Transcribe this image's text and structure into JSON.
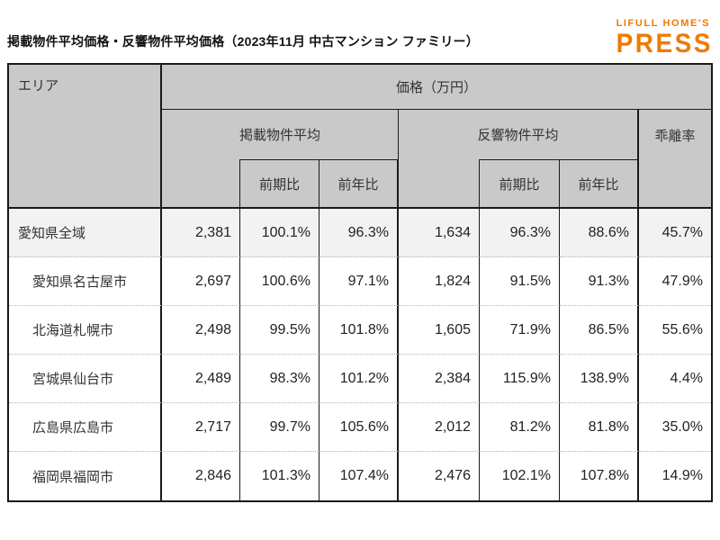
{
  "page": {
    "title": "掲載物件平均価格・反響物件平均価格（2023年11月 中古マンション ファミリー）"
  },
  "logo": {
    "line1": "LIFULL HOME'S",
    "line2": "PRESS",
    "color": "#EF7A00"
  },
  "table": {
    "header": {
      "area": "エリア",
      "price_unit": "価格（万円）",
      "listed_group": "掲載物件平均",
      "inquiry_group": "反響物件平均",
      "deviation": "乖離率",
      "prev_period": "前期比",
      "prev_year": "前年比"
    },
    "rows": [
      {
        "area": "愛知県全域",
        "indent": false,
        "highlight": true,
        "listed_avg": "2,381",
        "listed_prev_period": "100.1%",
        "listed_prev_year": "96.3%",
        "inquiry_avg": "1,634",
        "inquiry_prev_period": "96.3%",
        "inquiry_prev_year": "88.6%",
        "deviation": "45.7%"
      },
      {
        "area": "愛知県名古屋市",
        "indent": true,
        "highlight": false,
        "listed_avg": "2,697",
        "listed_prev_period": "100.6%",
        "listed_prev_year": "97.1%",
        "inquiry_avg": "1,824",
        "inquiry_prev_period": "91.5%",
        "inquiry_prev_year": "91.3%",
        "deviation": "47.9%"
      },
      {
        "area": "北海道札幌市",
        "indent": true,
        "highlight": false,
        "listed_avg": "2,498",
        "listed_prev_period": "99.5%",
        "listed_prev_year": "101.8%",
        "inquiry_avg": "1,605",
        "inquiry_prev_period": "71.9%",
        "inquiry_prev_year": "86.5%",
        "deviation": "55.6%"
      },
      {
        "area": "宮城県仙台市",
        "indent": true,
        "highlight": false,
        "listed_avg": "2,489",
        "listed_prev_period": "98.3%",
        "listed_prev_year": "101.2%",
        "inquiry_avg": "2,384",
        "inquiry_prev_period": "115.9%",
        "inquiry_prev_year": "138.9%",
        "deviation": "4.4%"
      },
      {
        "area": "広島県広島市",
        "indent": true,
        "highlight": false,
        "listed_avg": "2,717",
        "listed_prev_period": "99.7%",
        "listed_prev_year": "105.6%",
        "inquiry_avg": "2,012",
        "inquiry_prev_period": "81.2%",
        "inquiry_prev_year": "81.8%",
        "deviation": "35.0%"
      },
      {
        "area": "福岡県福岡市",
        "indent": true,
        "highlight": false,
        "listed_avg": "2,846",
        "listed_prev_period": "101.3%",
        "listed_prev_year": "107.4%",
        "inquiry_avg": "2,476",
        "inquiry_prev_period": "102.1%",
        "inquiry_prev_year": "107.8%",
        "deviation": "14.9%"
      }
    ],
    "colors": {
      "header_bg": "#c9c9c9",
      "highlight_row_bg": "#f2f2f2",
      "border": "#1a1a1a"
    }
  },
  "chart_data": {
    "type": "table",
    "title": "掲載物件平均価格・反響物件平均価格（2023年11月 中古マンション ファミリー）",
    "unit": "万円",
    "columns": [
      "エリア",
      "掲載物件平均",
      "掲載物件平均 前期比",
      "掲載物件平均 前年比",
      "反響物件平均",
      "反響物件平均 前期比",
      "反響物件平均 前年比",
      "乖離率"
    ],
    "rows": [
      [
        "愛知県全域",
        2381,
        "100.1%",
        "96.3%",
        1634,
        "96.3%",
        "88.6%",
        "45.7%"
      ],
      [
        "愛知県名古屋市",
        2697,
        "100.6%",
        "97.1%",
        1824,
        "91.5%",
        "91.3%",
        "47.9%"
      ],
      [
        "北海道札幌市",
        2498,
        "99.5%",
        "101.8%",
        1605,
        "71.9%",
        "86.5%",
        "55.6%"
      ],
      [
        "宮城県仙台市",
        2489,
        "98.3%",
        "101.2%",
        2384,
        "115.9%",
        "138.9%",
        "4.4%"
      ],
      [
        "広島県広島市",
        2717,
        "99.7%",
        "105.6%",
        2012,
        "81.2%",
        "81.8%",
        "35.0%"
      ],
      [
        "福岡県福岡市",
        2846,
        "101.3%",
        "107.4%",
        2476,
        "102.1%",
        "107.8%",
        "14.9%"
      ]
    ]
  }
}
